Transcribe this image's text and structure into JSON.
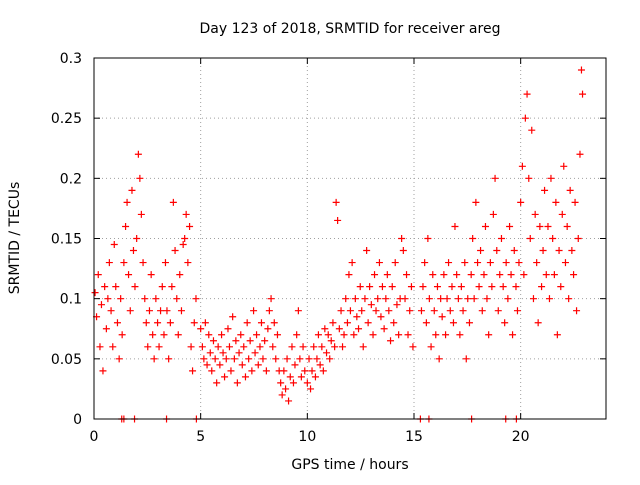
{
  "chart_data": {
    "type": "scatter",
    "title": "Day 123 of 2018, SRMTID for receiver areg",
    "xlabel": "GPS time / hours",
    "ylabel": "SRMTID / TECUs",
    "xlim": [
      0,
      24
    ],
    "ylim": [
      0,
      0.3
    ],
    "grid": true,
    "marker": "+",
    "marker_color": "#ff0000",
    "x_ticks": [
      {
        "value": 0,
        "label": "0"
      },
      {
        "value": 5,
        "label": "5"
      },
      {
        "value": 10,
        "label": "10"
      },
      {
        "value": 15,
        "label": "15"
      },
      {
        "value": 20,
        "label": "20"
      }
    ],
    "y_ticks": [
      {
        "value": 0,
        "label": "0"
      },
      {
        "value": 0.05,
        "label": "0.05"
      },
      {
        "value": 0.1,
        "label": "0.1"
      },
      {
        "value": 0.15,
        "label": "0.15"
      },
      {
        "value": 0.2,
        "label": "0.2"
      },
      {
        "value": 0.25,
        "label": "0.25"
      },
      {
        "value": 0.3,
        "label": "0.3"
      }
    ],
    "series": [
      {
        "name": "SRMTID",
        "points": [
          [
            0.05,
            0.105
          ],
          [
            0.12,
            0.085
          ],
          [
            0.2,
            0.12
          ],
          [
            0.28,
            0.06
          ],
          [
            0.35,
            0.095
          ],
          [
            0.42,
            0.04
          ],
          [
            0.5,
            0.11
          ],
          [
            0.58,
            0.075
          ],
          [
            0.65,
            0.1
          ],
          [
            0.72,
            0.13
          ],
          [
            0.8,
            0.09
          ],
          [
            0.88,
            0.06
          ],
          [
            0.95,
            0.145
          ],
          [
            1.02,
            0.11
          ],
          [
            1.1,
            0.08
          ],
          [
            1.18,
            0.05
          ],
          [
            1.25,
            0.1
          ],
          [
            1.32,
            0.07
          ],
          [
            1.4,
            0.13
          ],
          [
            1.48,
            0.16
          ],
          [
            1.55,
            0.18
          ],
          [
            1.62,
            0.12
          ],
          [
            1.7,
            0.09
          ],
          [
            1.78,
            0.19
          ],
          [
            1.85,
            0.14
          ],
          [
            1.92,
            0.11
          ],
          [
            2.0,
            0.15
          ],
          [
            2.08,
            0.22
          ],
          [
            2.15,
            0.2
          ],
          [
            2.22,
            0.17
          ],
          [
            2.3,
            0.13
          ],
          [
            2.38,
            0.1
          ],
          [
            2.45,
            0.08
          ],
          [
            2.52,
            0.06
          ],
          [
            2.6,
            0.09
          ],
          [
            2.68,
            0.12
          ],
          [
            2.75,
            0.07
          ],
          [
            2.82,
            0.05
          ],
          [
            2.9,
            0.1
          ],
          [
            2.98,
            0.08
          ],
          [
            3.05,
            0.06
          ],
          [
            3.12,
            0.09
          ],
          [
            3.2,
            0.11
          ],
          [
            3.28,
            0.07
          ],
          [
            3.35,
            0.13
          ],
          [
            3.42,
            0.09
          ],
          [
            3.5,
            0.05
          ],
          [
            3.58,
            0.08
          ],
          [
            3.65,
            0.11
          ],
          [
            3.72,
            0.18
          ],
          [
            3.8,
            0.14
          ],
          [
            3.88,
            0.1
          ],
          [
            3.95,
            0.07
          ],
          [
            4.02,
            0.12
          ],
          [
            4.1,
            0.09
          ],
          [
            4.18,
            0.145
          ],
          [
            4.25,
            0.15
          ],
          [
            4.32,
            0.17
          ],
          [
            4.4,
            0.13
          ],
          [
            4.48,
            0.16
          ],
          [
            4.55,
            0.06
          ],
          [
            4.62,
            0.04
          ],
          [
            4.7,
            0.08
          ],
          [
            4.78,
            0.1
          ],
          [
            5.0,
            0.075
          ],
          [
            5.08,
            0.06
          ],
          [
            5.15,
            0.05
          ],
          [
            5.22,
            0.08
          ],
          [
            5.3,
            0.045
          ],
          [
            5.38,
            0.07
          ],
          [
            5.45,
            0.055
          ],
          [
            5.52,
            0.04
          ],
          [
            5.6,
            0.065
          ],
          [
            5.68,
            0.05
          ],
          [
            5.75,
            0.03
          ],
          [
            5.82,
            0.06
          ],
          [
            5.9,
            0.045
          ],
          [
            5.98,
            0.07
          ],
          [
            6.05,
            0.055
          ],
          [
            6.12,
            0.035
          ],
          [
            6.2,
            0.05
          ],
          [
            6.28,
            0.075
          ],
          [
            6.35,
            0.06
          ],
          [
            6.42,
            0.04
          ],
          [
            6.5,
            0.085
          ],
          [
            6.58,
            0.05
          ],
          [
            6.65,
            0.065
          ],
          [
            6.72,
            0.03
          ],
          [
            6.8,
            0.055
          ],
          [
            6.88,
            0.07
          ],
          [
            6.95,
            0.045
          ],
          [
            7.02,
            0.06
          ],
          [
            7.1,
            0.035
          ],
          [
            7.18,
            0.08
          ],
          [
            7.25,
            0.05
          ],
          [
            7.32,
            0.065
          ],
          [
            7.4,
            0.04
          ],
          [
            7.48,
            0.09
          ],
          [
            7.55,
            0.055
          ],
          [
            7.62,
            0.07
          ],
          [
            7.7,
            0.045
          ],
          [
            7.78,
            0.06
          ],
          [
            7.85,
            0.08
          ],
          [
            7.92,
            0.05
          ],
          [
            8.0,
            0.065
          ],
          [
            8.08,
            0.04
          ],
          [
            8.15,
            0.075
          ],
          [
            8.22,
            0.09
          ],
          [
            8.3,
            0.1
          ],
          [
            8.38,
            0.06
          ],
          [
            8.45,
            0.08
          ],
          [
            8.52,
            0.05
          ],
          [
            8.6,
            0.07
          ],
          [
            8.68,
            0.04
          ],
          [
            8.75,
            0.03
          ],
          [
            8.82,
            0.02
          ],
          [
            8.9,
            0.04
          ],
          [
            8.98,
            0.025
          ],
          [
            9.05,
            0.05
          ],
          [
            9.12,
            0.015
          ],
          [
            9.2,
            0.035
          ],
          [
            9.28,
            0.06
          ],
          [
            9.35,
            0.03
          ],
          [
            9.42,
            0.045
          ],
          [
            9.5,
            0.07
          ],
          [
            9.58,
            0.09
          ],
          [
            9.65,
            0.05
          ],
          [
            9.72,
            0.035
          ],
          [
            9.8,
            0.06
          ],
          [
            9.88,
            0.04
          ],
          [
            10.0,
            0.03
          ],
          [
            10.08,
            0.05
          ],
          [
            10.15,
            0.025
          ],
          [
            10.22,
            0.04
          ],
          [
            10.3,
            0.06
          ],
          [
            10.38,
            0.035
          ],
          [
            10.45,
            0.05
          ],
          [
            10.52,
            0.07
          ],
          [
            10.6,
            0.045
          ],
          [
            10.68,
            0.06
          ],
          [
            10.75,
            0.04
          ],
          [
            10.82,
            0.075
          ],
          [
            10.9,
            0.055
          ],
          [
            10.98,
            0.07
          ],
          [
            11.05,
            0.05
          ],
          [
            11.12,
            0.065
          ],
          [
            11.2,
            0.08
          ],
          [
            11.28,
            0.06
          ],
          [
            11.35,
            0.18
          ],
          [
            11.42,
            0.165
          ],
          [
            11.5,
            0.075
          ],
          [
            11.58,
            0.09
          ],
          [
            11.65,
            0.06
          ],
          [
            11.72,
            0.07
          ],
          [
            11.8,
            0.1
          ],
          [
            11.88,
            0.08
          ],
          [
            11.95,
            0.12
          ],
          [
            12.02,
            0.09
          ],
          [
            12.1,
            0.13
          ],
          [
            12.18,
            0.07
          ],
          [
            12.25,
            0.1
          ],
          [
            12.32,
            0.085
          ],
          [
            12.4,
            0.075
          ],
          [
            12.48,
            0.11
          ],
          [
            12.55,
            0.09
          ],
          [
            12.62,
            0.06
          ],
          [
            12.7,
            0.1
          ],
          [
            12.78,
            0.14
          ],
          [
            12.85,
            0.08
          ],
          [
            12.92,
            0.11
          ],
          [
            13.0,
            0.095
          ],
          [
            13.08,
            0.07
          ],
          [
            13.15,
            0.12
          ],
          [
            13.22,
            0.09
          ],
          [
            13.3,
            0.1
          ],
          [
            13.38,
            0.13
          ],
          [
            13.45,
            0.085
          ],
          [
            13.52,
            0.11
          ],
          [
            13.6,
            0.075
          ],
          [
            13.68,
            0.1
          ],
          [
            13.75,
            0.12
          ],
          [
            13.82,
            0.09
          ],
          [
            13.9,
            0.065
          ],
          [
            13.98,
            0.11
          ],
          [
            14.05,
            0.08
          ],
          [
            14.12,
            0.13
          ],
          [
            14.2,
            0.095
          ],
          [
            14.28,
            0.07
          ],
          [
            14.35,
            0.1
          ],
          [
            14.42,
            0.15
          ],
          [
            14.5,
            0.14
          ],
          [
            14.58,
            0.1
          ],
          [
            14.65,
            0.12
          ],
          [
            14.72,
            0.07
          ],
          [
            14.8,
            0.09
          ],
          [
            14.88,
            0.11
          ],
          [
            14.95,
            0.06
          ],
          [
            15.35,
            0.09
          ],
          [
            15.42,
            0.11
          ],
          [
            15.5,
            0.13
          ],
          [
            15.58,
            0.08
          ],
          [
            15.65,
            0.15
          ],
          [
            15.72,
            0.1
          ],
          [
            15.8,
            0.06
          ],
          [
            15.88,
            0.12
          ],
          [
            15.95,
            0.09
          ],
          [
            16.02,
            0.07
          ],
          [
            16.1,
            0.11
          ],
          [
            16.18,
            0.05
          ],
          [
            16.25,
            0.1
          ],
          [
            16.32,
            0.085
          ],
          [
            16.4,
            0.12
          ],
          [
            16.48,
            0.07
          ],
          [
            16.55,
            0.1
          ],
          [
            16.62,
            0.13
          ],
          [
            16.7,
            0.09
          ],
          [
            16.78,
            0.11
          ],
          [
            16.85,
            0.08
          ],
          [
            16.92,
            0.16
          ],
          [
            17.0,
            0.12
          ],
          [
            17.08,
            0.1
          ],
          [
            17.15,
            0.07
          ],
          [
            17.22,
            0.11
          ],
          [
            17.3,
            0.09
          ],
          [
            17.38,
            0.13
          ],
          [
            17.45,
            0.05
          ],
          [
            17.52,
            0.1
          ],
          [
            17.6,
            0.08
          ],
          [
            17.68,
            0.12
          ],
          [
            17.75,
            0.15
          ],
          [
            17.82,
            0.1
          ],
          [
            17.9,
            0.18
          ],
          [
            17.98,
            0.13
          ],
          [
            18.05,
            0.11
          ],
          [
            18.12,
            0.14
          ],
          [
            18.2,
            0.09
          ],
          [
            18.28,
            0.12
          ],
          [
            18.35,
            0.16
          ],
          [
            18.42,
            0.1
          ],
          [
            18.5,
            0.07
          ],
          [
            18.58,
            0.13
          ],
          [
            18.65,
            0.11
          ],
          [
            18.72,
            0.17
          ],
          [
            18.8,
            0.2
          ],
          [
            18.88,
            0.14
          ],
          [
            18.95,
            0.09
          ],
          [
            19.02,
            0.12
          ],
          [
            19.1,
            0.15
          ],
          [
            19.18,
            0.11
          ],
          [
            19.25,
            0.08
          ],
          [
            19.32,
            0.13
          ],
          [
            19.4,
            0.1
          ],
          [
            19.48,
            0.16
          ],
          [
            19.55,
            0.12
          ],
          [
            19.62,
            0.07
          ],
          [
            19.7,
            0.14
          ],
          [
            19.78,
            0.11
          ],
          [
            19.85,
            0.09
          ],
          [
            19.92,
            0.13
          ],
          [
            20.0,
            0.18
          ],
          [
            20.08,
            0.21
          ],
          [
            20.15,
            0.12
          ],
          [
            20.22,
            0.25
          ],
          [
            20.3,
            0.27
          ],
          [
            20.38,
            0.2
          ],
          [
            20.45,
            0.15
          ],
          [
            20.52,
            0.24
          ],
          [
            20.6,
            0.1
          ],
          [
            20.68,
            0.17
          ],
          [
            20.75,
            0.13
          ],
          [
            20.82,
            0.08
          ],
          [
            20.9,
            0.16
          ],
          [
            20.98,
            0.11
          ],
          [
            21.05,
            0.14
          ],
          [
            21.12,
            0.19
          ],
          [
            21.2,
            0.12
          ],
          [
            21.28,
            0.16
          ],
          [
            21.35,
            0.1
          ],
          [
            21.42,
            0.2
          ],
          [
            21.5,
            0.15
          ],
          [
            21.58,
            0.12
          ],
          [
            21.65,
            0.18
          ],
          [
            21.72,
            0.07
          ],
          [
            21.8,
            0.14
          ],
          [
            21.88,
            0.11
          ],
          [
            21.95,
            0.17
          ],
          [
            22.02,
            0.21
          ],
          [
            22.1,
            0.13
          ],
          [
            22.18,
            0.16
          ],
          [
            22.25,
            0.1
          ],
          [
            22.32,
            0.19
          ],
          [
            22.4,
            0.14
          ],
          [
            22.48,
            0.12
          ],
          [
            22.55,
            0.18
          ],
          [
            22.62,
            0.09
          ],
          [
            22.7,
            0.15
          ],
          [
            22.78,
            0.22
          ],
          [
            22.85,
            0.29
          ],
          [
            22.9,
            0.27
          ]
        ]
      },
      {
        "name": "zero-value markers",
        "points": [
          [
            1.3,
            0
          ],
          [
            1.4,
            0
          ],
          [
            1.9,
            0
          ],
          [
            3.4,
            0
          ],
          [
            4.8,
            0
          ],
          [
            15.3,
            0
          ],
          [
            15.7,
            0
          ],
          [
            17.7,
            0
          ],
          [
            19.3,
            0
          ],
          [
            19.8,
            0
          ]
        ]
      }
    ]
  }
}
